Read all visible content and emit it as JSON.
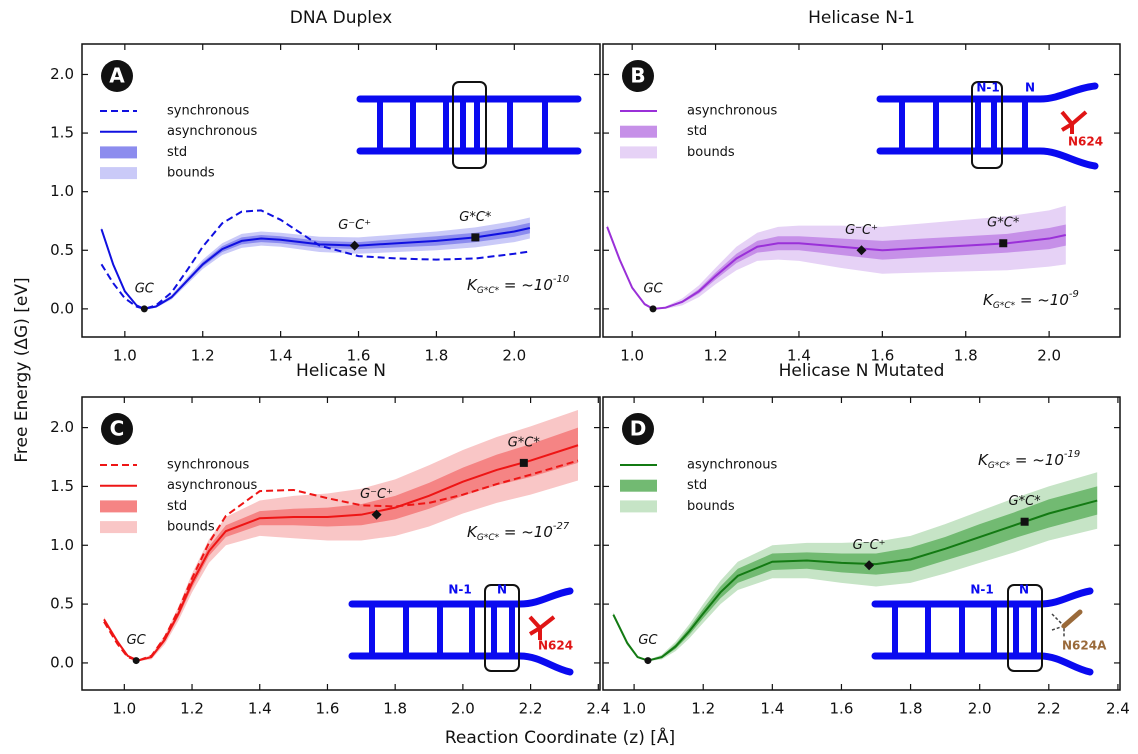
{
  "y_label": "Free Energy (ΔG) [eV]",
  "x_label": "Reaction Coordinate (z) [Å]",
  "chart_data": [
    {
      "type": "line",
      "title": "DNA Duplex",
      "panel_label": "A",
      "x": [
        0.94,
        0.97,
        1.0,
        1.03,
        1.05,
        1.08,
        1.12,
        1.16,
        1.2,
        1.25,
        1.3,
        1.35,
        1.4,
        1.5,
        1.6,
        1.7,
        1.8,
        1.9,
        2.0,
        2.04
      ],
      "series": [
        {
          "name": "synchronous",
          "color": "#1010e0",
          "style": "dashed",
          "values": [
            0.38,
            0.22,
            0.09,
            0.02,
            0.0,
            0.03,
            0.14,
            0.33,
            0.53,
            0.73,
            0.83,
            0.84,
            0.76,
            0.54,
            0.45,
            0.43,
            0.42,
            0.43,
            0.47,
            0.49
          ]
        },
        {
          "name": "asynchronous",
          "color": "#1010e0",
          "style": "solid",
          "values": [
            0.68,
            0.38,
            0.15,
            0.03,
            0.0,
            0.02,
            0.1,
            0.24,
            0.38,
            0.51,
            0.58,
            0.6,
            0.59,
            0.55,
            0.54,
            0.56,
            0.58,
            0.61,
            0.66,
            0.69
          ]
        },
        {
          "name": "std",
          "color": "#8c8cee",
          "lower": [
            0.67,
            0.37,
            0.145,
            0.025,
            0,
            0.015,
            0.09,
            0.225,
            0.36,
            0.485,
            0.55,
            0.57,
            0.56,
            0.52,
            0.51,
            0.525,
            0.54,
            0.57,
            0.615,
            0.645
          ],
          "upper": [
            0.69,
            0.39,
            0.155,
            0.035,
            0,
            0.025,
            0.11,
            0.255,
            0.4,
            0.535,
            0.61,
            0.63,
            0.62,
            0.58,
            0.57,
            0.595,
            0.62,
            0.65,
            0.705,
            0.735
          ]
        },
        {
          "name": "bounds",
          "color": "#cacaf8",
          "lower": [
            0.66,
            0.36,
            0.14,
            0.02,
            -0.005,
            0.01,
            0.08,
            0.21,
            0.34,
            0.46,
            0.52,
            0.54,
            0.53,
            0.485,
            0.47,
            0.485,
            0.5,
            0.525,
            0.57,
            0.6
          ],
          "upper": [
            0.7,
            0.4,
            0.16,
            0.04,
            0.005,
            0.03,
            0.12,
            0.27,
            0.42,
            0.56,
            0.64,
            0.66,
            0.65,
            0.615,
            0.61,
            0.635,
            0.66,
            0.695,
            0.75,
            0.78
          ]
        }
      ],
      "points": [
        {
          "label": "GC",
          "x": 1.05,
          "y": 0.0,
          "marker": "circle"
        },
        {
          "label": "G⁻C⁺",
          "x": 1.59,
          "y": 0.54,
          "marker": "diamond"
        },
        {
          "label": "G*C*",
          "x": 1.9,
          "y": 0.61,
          "marker": "square"
        }
      ],
      "k_label": {
        "main": "K",
        "sub": "G*C*",
        "rel": " = ~10",
        "exp": "-10"
      },
      "xlim": [
        0.89,
        2.22
      ],
      "ylim": [
        -0.24,
        2.26
      ],
      "xticks": [
        {
          "value": 1,
          "label": "1.0"
        },
        1.2,
        1.4,
        1.6,
        1.8,
        {
          "value": 2,
          "label": "2.0"
        }
      ],
      "yticks": [
        {
          "value": 0,
          "label": "0.0"
        },
        0.5,
        {
          "value": 1,
          "label": "1.0"
        },
        1.5,
        {
          "value": 2,
          "label": "2.0"
        }
      ]
    },
    {
      "type": "line",
      "title": "Helicase N-1",
      "panel_label": "B",
      "x": [
        0.94,
        0.97,
        1.0,
        1.03,
        1.05,
        1.08,
        1.12,
        1.16,
        1.2,
        1.25,
        1.3,
        1.35,
        1.4,
        1.5,
        1.6,
        1.7,
        1.8,
        1.9,
        2.0,
        2.04
      ],
      "series": [
        {
          "name": "asynchronous",
          "color": "#9a30d8",
          "style": "solid",
          "values": [
            0.7,
            0.42,
            0.18,
            0.04,
            0.0,
            0.01,
            0.06,
            0.15,
            0.28,
            0.43,
            0.53,
            0.56,
            0.56,
            0.53,
            0.5,
            0.52,
            0.54,
            0.56,
            0.6,
            0.63
          ]
        },
        {
          "name": "std",
          "color": "#c690e8",
          "lower": [
            0.69,
            0.41,
            0.175,
            0.035,
            0,
            0.005,
            0.05,
            0.13,
            0.25,
            0.39,
            0.48,
            0.5,
            0.5,
            0.46,
            0.42,
            0.44,
            0.46,
            0.48,
            0.51,
            0.54
          ],
          "upper": [
            0.71,
            0.43,
            0.185,
            0.045,
            0,
            0.015,
            0.07,
            0.17,
            0.31,
            0.47,
            0.58,
            0.62,
            0.62,
            0.6,
            0.58,
            0.6,
            0.62,
            0.64,
            0.69,
            0.72
          ]
        },
        {
          "name": "bounds",
          "color": "#e6d2f6",
          "lower": [
            0.68,
            0.4,
            0.17,
            0.03,
            -0.005,
            0,
            0.03,
            0.1,
            0.21,
            0.33,
            0.41,
            0.42,
            0.41,
            0.35,
            0.3,
            0.31,
            0.32,
            0.33,
            0.36,
            0.38
          ],
          "upper": [
            0.72,
            0.44,
            0.19,
            0.05,
            0.005,
            0.02,
            0.09,
            0.2,
            0.35,
            0.53,
            0.65,
            0.7,
            0.71,
            0.71,
            0.7,
            0.73,
            0.76,
            0.79,
            0.84,
            0.88
          ]
        }
      ],
      "points": [
        {
          "label": "GC",
          "x": 1.05,
          "y": 0.0,
          "marker": "circle"
        },
        {
          "label": "G⁻C⁺",
          "x": 1.55,
          "y": 0.5,
          "marker": "diamond"
        },
        {
          "label": "G*C*",
          "x": 1.89,
          "y": 0.56,
          "marker": "square"
        }
      ],
      "k_label": {
        "main": "K",
        "sub": "G*C*",
        "rel": " = ~10",
        "exp": "-9"
      },
      "inset_labels": [
        "N-1",
        "N",
        "N624"
      ],
      "xlim": [
        0.93,
        2.17
      ],
      "ylim": [
        -0.24,
        2.26
      ],
      "xticks": [
        {
          "value": 1,
          "label": "1.0"
        },
        1.2,
        1.4,
        1.6,
        1.8,
        {
          "value": 2,
          "label": "2.0"
        }
      ],
      "yticks": [
        0,
        0.5,
        1,
        1.5,
        2
      ]
    },
    {
      "type": "line",
      "title": "Helicase N",
      "panel_label": "C",
      "x": [
        0.94,
        0.98,
        1.01,
        1.04,
        1.08,
        1.12,
        1.16,
        1.2,
        1.25,
        1.3,
        1.4,
        1.5,
        1.6,
        1.7,
        1.8,
        1.9,
        2.0,
        2.1,
        2.2,
        2.34
      ],
      "series": [
        {
          "name": "synchronous",
          "color": "#ee1515",
          "style": "dashed",
          "values": [
            0.35,
            0.16,
            0.05,
            0.02,
            0.06,
            0.22,
            0.45,
            0.72,
            1.02,
            1.25,
            1.46,
            1.47,
            1.4,
            1.34,
            1.33,
            1.36,
            1.43,
            1.52,
            1.6,
            1.72
          ]
        },
        {
          "name": "asynchronous",
          "color": "#ee1515",
          "style": "solid",
          "values": [
            0.37,
            0.18,
            0.06,
            0.02,
            0.05,
            0.2,
            0.42,
            0.68,
            0.95,
            1.12,
            1.23,
            1.24,
            1.24,
            1.26,
            1.32,
            1.42,
            1.54,
            1.64,
            1.72,
            1.85
          ]
        },
        {
          "name": "std",
          "color": "#f58484",
          "lower": [
            0.36,
            0.17,
            0.055,
            0.02,
            0.04,
            0.18,
            0.39,
            0.64,
            0.91,
            1.07,
            1.17,
            1.17,
            1.16,
            1.17,
            1.22,
            1.31,
            1.42,
            1.51,
            1.58,
            1.7
          ],
          "upper": [
            0.38,
            0.19,
            0.065,
            0.02,
            0.06,
            0.22,
            0.45,
            0.72,
            0.99,
            1.17,
            1.29,
            1.31,
            1.32,
            1.35,
            1.42,
            1.53,
            1.66,
            1.77,
            1.86,
            2.0
          ]
        },
        {
          "name": "bounds",
          "color": "#f9c6c6",
          "lower": [
            0.35,
            0.16,
            0.05,
            0.015,
            0.03,
            0.16,
            0.36,
            0.6,
            0.85,
            1.0,
            1.08,
            1.06,
            1.04,
            1.04,
            1.08,
            1.16,
            1.27,
            1.36,
            1.43,
            1.55
          ],
          "upper": [
            0.39,
            0.2,
            0.07,
            0.025,
            0.07,
            0.24,
            0.48,
            0.76,
            1.05,
            1.24,
            1.38,
            1.42,
            1.44,
            1.48,
            1.56,
            1.68,
            1.81,
            1.92,
            2.01,
            2.15
          ]
        }
      ],
      "points": [
        {
          "label": "GC",
          "x": 1.035,
          "y": 0.02,
          "marker": "circle"
        },
        {
          "label": "G⁻C⁺",
          "x": 1.745,
          "y": 1.26,
          "marker": "diamond"
        },
        {
          "label": "G*C*",
          "x": 2.18,
          "y": 1.7,
          "marker": "square"
        }
      ],
      "k_label": {
        "main": "K",
        "sub": "G*C*",
        "rel": " = ~10",
        "exp": "-27"
      },
      "inset_labels": [
        "N-1",
        "N",
        "N624"
      ],
      "xlim": [
        0.875,
        2.405
      ],
      "ylim": [
        -0.23,
        2.26
      ],
      "xticks": [
        {
          "value": 1,
          "label": "1.0"
        },
        1.2,
        1.4,
        1.6,
        1.8,
        {
          "value": 2,
          "label": "2.0"
        },
        2.2,
        2.4
      ],
      "yticks": [
        {
          "value": 0,
          "label": "0.0"
        },
        0.5,
        {
          "value": 1,
          "label": "1.0"
        },
        1.5,
        {
          "value": 2,
          "label": "2.0"
        }
      ]
    },
    {
      "type": "line",
      "title": "Helicase N Mutated",
      "panel_label": "D",
      "x": [
        0.94,
        0.98,
        1.01,
        1.04,
        1.08,
        1.12,
        1.16,
        1.2,
        1.25,
        1.3,
        1.4,
        1.5,
        1.6,
        1.7,
        1.8,
        1.9,
        2.0,
        2.1,
        2.2,
        2.34
      ],
      "series": [
        {
          "name": "asynchronous",
          "color": "#137a13",
          "style": "solid",
          "values": [
            0.41,
            0.17,
            0.05,
            0.02,
            0.05,
            0.14,
            0.27,
            0.42,
            0.6,
            0.74,
            0.86,
            0.87,
            0.85,
            0.84,
            0.88,
            0.97,
            1.07,
            1.17,
            1.27,
            1.38
          ]
        },
        {
          "name": "std",
          "color": "#72ba72",
          "lower": [
            0.4,
            0.16,
            0.045,
            0.02,
            0.04,
            0.12,
            0.24,
            0.38,
            0.55,
            0.68,
            0.79,
            0.8,
            0.77,
            0.75,
            0.78,
            0.87,
            0.96,
            1.06,
            1.15,
            1.26
          ],
          "upper": [
            0.42,
            0.18,
            0.055,
            0.02,
            0.06,
            0.16,
            0.3,
            0.46,
            0.65,
            0.8,
            0.93,
            0.94,
            0.93,
            0.93,
            0.98,
            1.07,
            1.18,
            1.28,
            1.39,
            1.5
          ]
        },
        {
          "name": "bounds",
          "color": "#c6e4c6",
          "lower": [
            0.39,
            0.15,
            0.04,
            0.015,
            0.03,
            0.1,
            0.21,
            0.34,
            0.5,
            0.62,
            0.72,
            0.72,
            0.68,
            0.65,
            0.68,
            0.76,
            0.85,
            0.94,
            1.04,
            1.14
          ],
          "upper": [
            0.43,
            0.19,
            0.06,
            0.025,
            0.07,
            0.18,
            0.33,
            0.5,
            0.7,
            0.86,
            1.0,
            1.02,
            1.02,
            1.03,
            1.08,
            1.18,
            1.29,
            1.4,
            1.5,
            1.62
          ]
        }
      ],
      "points": [
        {
          "label": "GC",
          "x": 1.04,
          "y": 0.02,
          "marker": "circle"
        },
        {
          "label": "G⁻C⁺",
          "x": 1.68,
          "y": 0.83,
          "marker": "diamond"
        },
        {
          "label": "G*C*",
          "x": 2.13,
          "y": 1.2,
          "marker": "square"
        }
      ],
      "k_label": {
        "main": "K",
        "sub": "G*C*",
        "rel": " = ~10",
        "exp": "-19"
      },
      "inset_labels": [
        "N-1",
        "N",
        "N624A"
      ],
      "xlim": [
        0.91,
        2.406
      ],
      "ylim": [
        -0.23,
        2.26
      ],
      "xticks": [
        {
          "value": 1,
          "label": "1.0"
        },
        1.2,
        1.4,
        1.6,
        1.8,
        {
          "value": 2,
          "label": "2.0"
        },
        2.2,
        2.4
      ],
      "yticks": [
        0,
        0.5,
        1,
        1.5,
        2
      ]
    }
  ]
}
